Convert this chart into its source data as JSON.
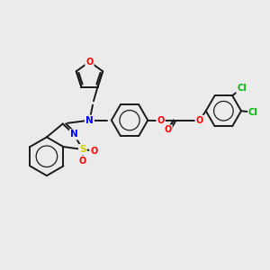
{
  "background_color": "#ebebeb",
  "bond_color": "#1a1a1a",
  "figsize": [
    3.0,
    3.0
  ],
  "dpi": 100,
  "atom_colors": {
    "N": "#0000ff",
    "O": "#ff0000",
    "S": "#cccc00",
    "Cl": "#00bb00",
    "C": "#1a1a1a"
  },
  "lw": 1.4
}
